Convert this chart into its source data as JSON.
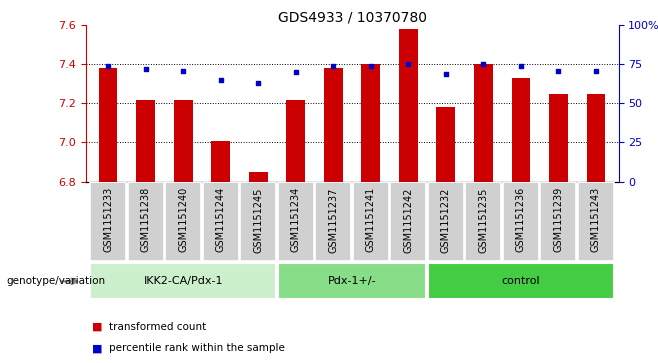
{
  "title": "GDS4933 / 10370780",
  "samples": [
    "GSM1151233",
    "GSM1151238",
    "GSM1151240",
    "GSM1151244",
    "GSM1151245",
    "GSM1151234",
    "GSM1151237",
    "GSM1151241",
    "GSM1151242",
    "GSM1151232",
    "GSM1151235",
    "GSM1151236",
    "GSM1151239",
    "GSM1151243"
  ],
  "transformed_count": [
    7.38,
    7.22,
    7.22,
    7.01,
    6.85,
    7.22,
    7.38,
    7.4,
    7.58,
    7.18,
    7.4,
    7.33,
    7.25,
    7.25
  ],
  "percentile_rank": [
    74,
    72,
    71,
    65,
    63,
    70,
    74,
    74,
    75,
    69,
    75,
    74,
    71,
    71
  ],
  "ylim_left": [
    6.8,
    7.6
  ],
  "ylim_right": [
    0,
    100
  ],
  "yticks_left": [
    6.8,
    7.0,
    7.2,
    7.4,
    7.6
  ],
  "yticks_right": [
    0,
    25,
    50,
    75,
    100
  ],
  "groups": [
    {
      "label": "IKK2-CA/Pdx-1",
      "start": 0,
      "end": 4,
      "color": "#ccf0cc"
    },
    {
      "label": "Pdx-1+/-",
      "start": 5,
      "end": 8,
      "color": "#88dd88"
    },
    {
      "label": "control",
      "start": 9,
      "end": 13,
      "color": "#44cc44"
    }
  ],
  "bar_color": "#cc0000",
  "dot_color": "#0000cc",
  "bar_width": 0.5,
  "bar_base": 6.8,
  "bg_color": "#ffffff",
  "left_axis_color": "#cc0000",
  "right_axis_color": "#0000cc",
  "sample_box_color": "#d0d0d0",
  "group_label_fontsize": 8,
  "sample_fontsize": 7,
  "title_fontsize": 10,
  "legend_transformed": "transformed count",
  "legend_percentile": "percentile rank within the sample",
  "genotype_label": "genotype/variation"
}
